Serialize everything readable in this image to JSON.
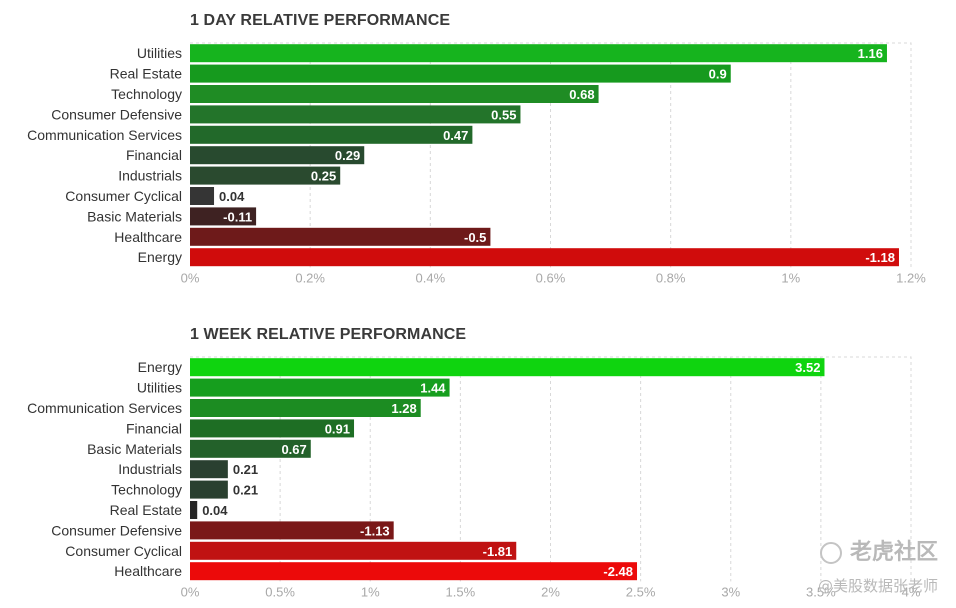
{
  "chart_data": [
    {
      "type": "bar",
      "orientation": "horizontal",
      "title": "1 DAY RELATIVE PERFORMANCE",
      "categories": [
        "Utilities",
        "Real Estate",
        "Technology",
        "Consumer Defensive",
        "Communication Services",
        "Financial",
        "Industrials",
        "Consumer Cyclical",
        "Basic Materials",
        "Healthcare",
        "Energy"
      ],
      "values": [
        1.16,
        0.9,
        0.68,
        0.55,
        0.47,
        0.29,
        0.25,
        0.04,
        -0.11,
        -0.5,
        -1.18
      ],
      "value_labels": [
        "1.16",
        "0.9",
        "0.68",
        "0.55",
        "0.47",
        "0.29",
        "0.25",
        "0.04",
        "-0.11",
        "-0.5",
        "-1.18"
      ],
      "colors": [
        "#16b41e",
        "#169a1e",
        "#1f8c24",
        "#23742a",
        "#22692a",
        "#284a2f",
        "#2a4a2f",
        "#353535",
        "#3e2222",
        "#6e1a1a",
        "#d00c0c"
      ],
      "xlim": [
        0,
        1.2
      ],
      "xticks": [
        0,
        0.2,
        0.4,
        0.6,
        0.8,
        1.0,
        1.2
      ],
      "xtick_labels": [
        "0%",
        "0.2%",
        "0.4%",
        "0.6%",
        "0.8%",
        "1%",
        "1.2%"
      ],
      "grid": true
    },
    {
      "type": "bar",
      "orientation": "horizontal",
      "title": "1 WEEK RELATIVE PERFORMANCE",
      "categories": [
        "Energy",
        "Utilities",
        "Communication Services",
        "Financial",
        "Basic Materials",
        "Industrials",
        "Technology",
        "Real Estate",
        "Consumer Defensive",
        "Consumer Cyclical",
        "Healthcare"
      ],
      "values": [
        3.52,
        1.44,
        1.28,
        0.91,
        0.67,
        0.21,
        0.21,
        0.04,
        -1.13,
        -1.81,
        -2.48
      ],
      "value_labels": [
        "3.52",
        "1.44",
        "1.28",
        "0.91",
        "0.67",
        "0.21",
        "0.21",
        "0.04",
        "-1.13",
        "-1.81",
        "-2.48"
      ],
      "colors": [
        "#0fd40f",
        "#169e1e",
        "#1c8c22",
        "#1e6e24",
        "#23612a",
        "#2a4030",
        "#2a4030",
        "#262626",
        "#7a1818",
        "#c01212",
        "#ec0a0a"
      ],
      "xlim": [
        0,
        4
      ],
      "xticks": [
        0,
        0.5,
        1,
        1.5,
        2,
        2.5,
        3,
        3.5,
        4
      ],
      "xtick_labels": [
        "0%",
        "0.5%",
        "1%",
        "1.5%",
        "2%",
        "2.5%",
        "3%",
        "3.5%",
        "4%"
      ],
      "grid": true
    }
  ],
  "watermark": {
    "logo_text": "老虎社区",
    "user_text": "@美股数据张老师"
  }
}
